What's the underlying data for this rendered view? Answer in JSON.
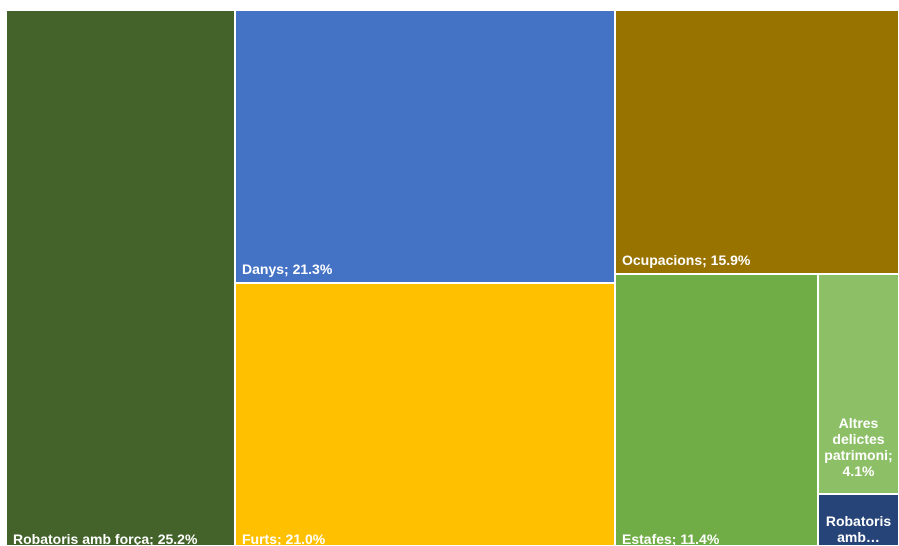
{
  "chart_data": {
    "type": "treemap",
    "title": "",
    "items": [
      {
        "name": "Robatoris amb força",
        "value": 25.2,
        "label": "Robatoris amb força; 25.2%",
        "color": "#43632a"
      },
      {
        "name": "Danys",
        "value": 21.3,
        "label": "Danys; 21.3%",
        "color": "#4472c4"
      },
      {
        "name": "Furts",
        "value": 21.0,
        "label": "Furts; 21.0%",
        "color": "#ffc000"
      },
      {
        "name": "Ocupacions",
        "value": 15.9,
        "label": "Ocupacions; 15.9%",
        "color": "#997300"
      },
      {
        "name": "Estafes",
        "value": 11.4,
        "label": "Estafes; 11.4%",
        "color": "#70ad47"
      },
      {
        "name": "Altres delictes patrimoni",
        "value": 4.1,
        "label": "Altres delictes patrimoni; 4.1%",
        "color": "#8cbf66"
      },
      {
        "name": "Robatoris amb…",
        "value": 1.1,
        "label": "Robatoris amb…",
        "color": "#264478"
      }
    ]
  }
}
